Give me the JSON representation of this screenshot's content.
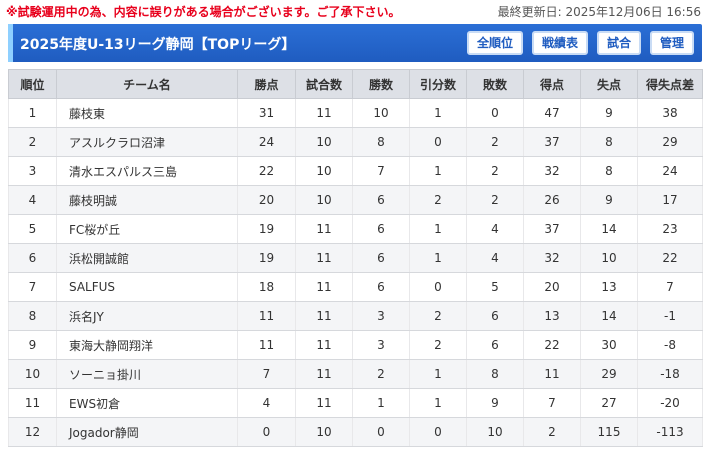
{
  "notice": "※試験運用中の為、内容に誤りがある場合がございます。ご了承下さい。",
  "updated": "最終更新日: 2025年12月06日 16:56",
  "header": {
    "title": "2025年度U-13リーグ静岡【TOPリーグ】",
    "buttons": [
      "全順位",
      "戦績表",
      "試合",
      "管理"
    ]
  },
  "table": {
    "columns": [
      "順位",
      "チーム名",
      "勝点",
      "試合数",
      "勝数",
      "引分数",
      "敗数",
      "得点",
      "失点",
      "得失点差"
    ],
    "rows": [
      [
        "1",
        "藤枝東",
        "31",
        "11",
        "10",
        "1",
        "0",
        "47",
        "9",
        "38"
      ],
      [
        "2",
        "アスルクラロ沼津",
        "24",
        "10",
        "8",
        "0",
        "2",
        "37",
        "8",
        "29"
      ],
      [
        "3",
        "清水エスパルス三島",
        "22",
        "10",
        "7",
        "1",
        "2",
        "32",
        "8",
        "24"
      ],
      [
        "4",
        " 藤枝明誠",
        "20",
        "10",
        "6",
        "2",
        "2",
        "26",
        "9",
        "17"
      ],
      [
        "5",
        "FC桜が丘",
        "19",
        "11",
        "6",
        "1",
        "4",
        "37",
        "14",
        "23"
      ],
      [
        "6",
        "浜松開誠館",
        "19",
        "11",
        "6",
        "1",
        "4",
        "32",
        "10",
        "22"
      ],
      [
        "7",
        "SALFUS",
        "18",
        "11",
        "6",
        "0",
        "5",
        "20",
        "13",
        "7"
      ],
      [
        "8",
        "浜名JY",
        "11",
        "11",
        "3",
        "2",
        "6",
        "13",
        "14",
        "-1"
      ],
      [
        "9",
        "東海大静岡翔洋",
        "11",
        "11",
        "3",
        "2",
        "6",
        "22",
        "30",
        "-8"
      ],
      [
        "10",
        "ソーニョ掛川",
        "7",
        "11",
        "2",
        "1",
        "8",
        "11",
        "29",
        "-18"
      ],
      [
        "11",
        "EWS初倉",
        "4",
        "11",
        "1",
        "1",
        "9",
        "7",
        "27",
        "-20"
      ],
      [
        "12",
        "Jogador静岡",
        "0",
        "10",
        "0",
        "0",
        "10",
        "2",
        "115",
        "-113"
      ]
    ]
  }
}
